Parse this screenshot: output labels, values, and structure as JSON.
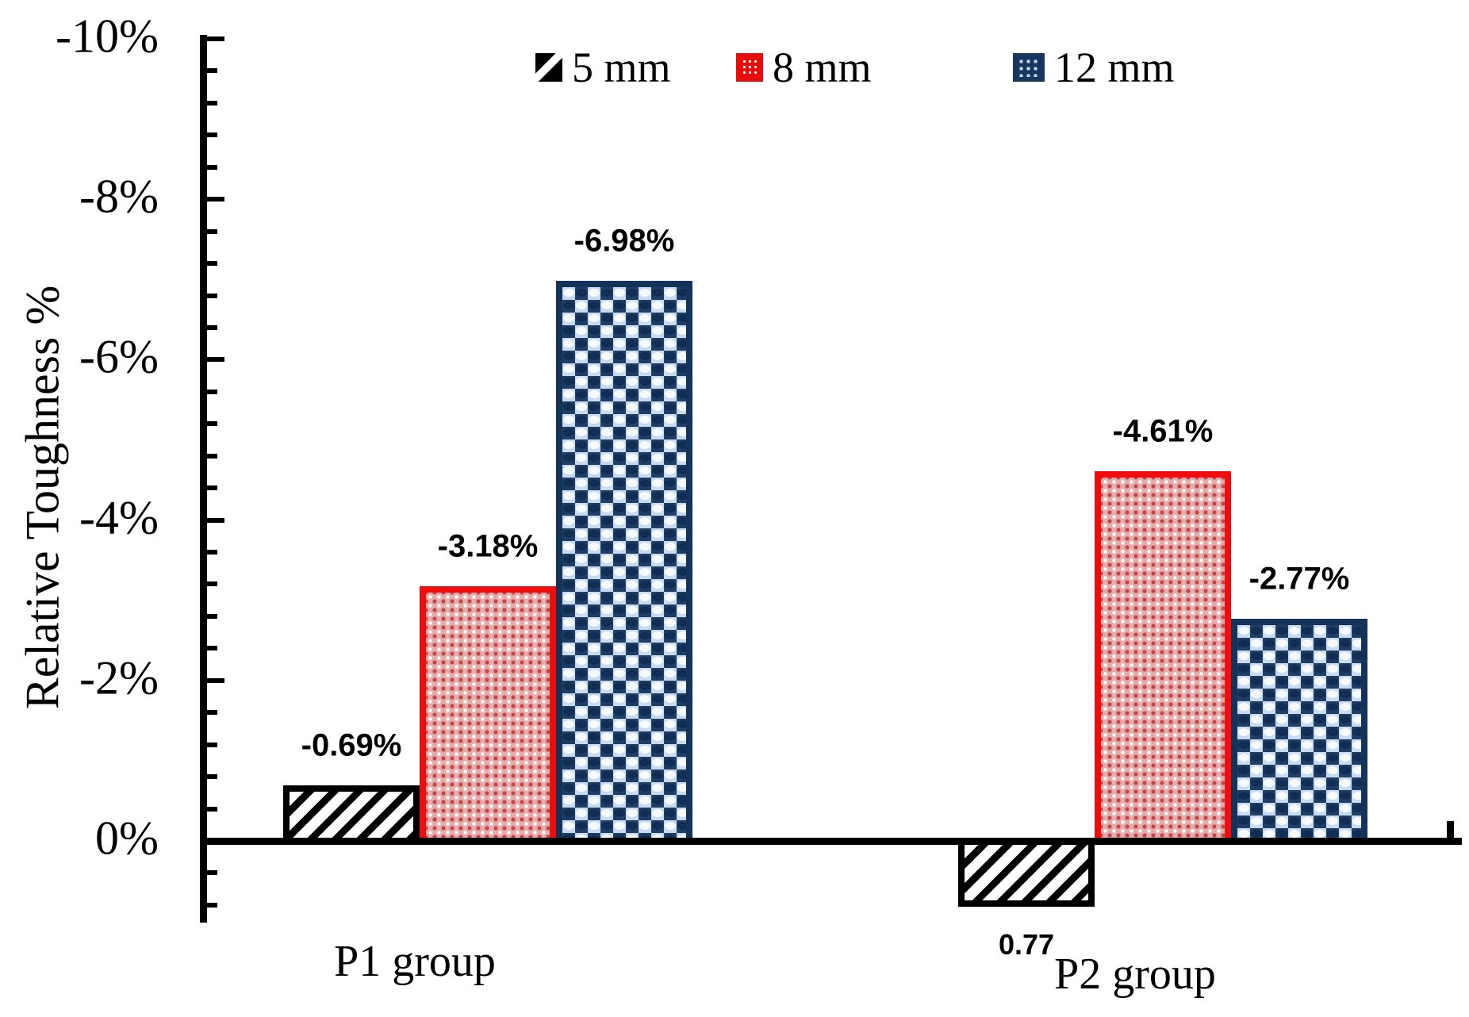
{
  "chart_data": {
    "type": "bar",
    "title": "",
    "ylabel": "Relative Toughness %",
    "categories": [
      "P1 group",
      "P2 group"
    ],
    "series": [
      {
        "name": "5 mm",
        "pattern": "black-hatch",
        "values": [
          -0.69,
          0.77
        ],
        "labels": [
          "-0.69%",
          "0.77"
        ]
      },
      {
        "name": "8 mm",
        "pattern": "red-dots",
        "values": [
          -3.18,
          -4.61
        ],
        "labels": [
          "-3.18%",
          "-4.61%"
        ]
      },
      {
        "name": "12 mm",
        "pattern": "blue-checker",
        "values": [
          -6.98,
          -2.77
        ],
        "labels": [
          "-6.98%",
          "-2.77%"
        ]
      }
    ],
    "y_axis": {
      "inverted": true,
      "ticks": [
        "-10%",
        "-8%",
        "-6%",
        "-4%",
        "-2%",
        "0%"
      ],
      "tick_values": [
        -10,
        -8,
        -6,
        -4,
        -2,
        0
      ],
      "minor_step_pct": 0.4,
      "axis_top_value": -10,
      "axis_bottom_value": 1
    },
    "legend": [
      {
        "label": "5 mm",
        "pattern": "black-hatch"
      },
      {
        "label": "8 mm",
        "pattern": "red-dots"
      },
      {
        "label": "12 mm",
        "pattern": "blue-checker"
      }
    ],
    "colors": {
      "black": "#000000",
      "red_border": "#ee0c0c",
      "red_fill": "#e8abab",
      "red_dot": "#bf4848",
      "blue_border": "#14335a",
      "blue_fill": "#c8dbf0",
      "blue_dark": "#1f3e66"
    }
  }
}
